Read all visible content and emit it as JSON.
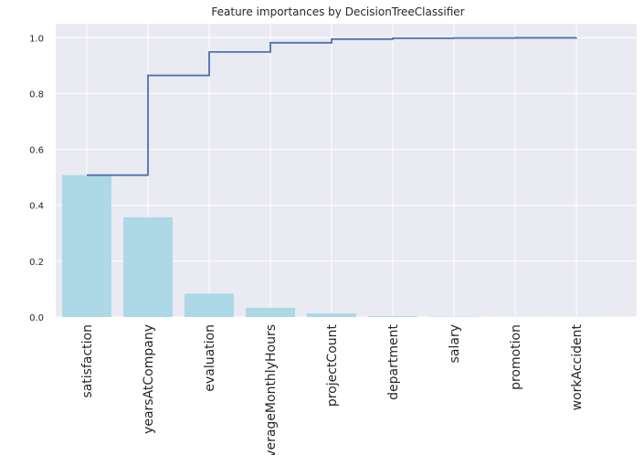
{
  "chart_data": {
    "type": "bar",
    "title": "Feature importances by DecisionTreeClassifier",
    "xlabel": "",
    "ylabel": "",
    "categories": [
      "satisfaction",
      "yearsAtCompany",
      "evaluation",
      "averageMonthlyHours",
      "projectCount",
      "department",
      "salary",
      "promotion",
      "workAccident"
    ],
    "series": [
      {
        "type": "bar",
        "values": [
          0.508,
          0.357,
          0.084,
          0.033,
          0.013,
          0.003,
          0.001,
          0.0005,
          0.0005
        ]
      },
      {
        "type": "step-cumulative",
        "values": [
          0.508,
          0.865,
          0.949,
          0.982,
          0.995,
          0.998,
          0.999,
          0.9995,
          1.0
        ]
      }
    ],
    "yticks": [
      "0.0",
      "0.2",
      "0.4",
      "0.6",
      "0.8",
      "1.0"
    ],
    "ylim": [
      0,
      1.05
    ],
    "grid": true,
    "colors": {
      "bars": "#add8e6",
      "line": "#4c72b0",
      "plot_background": "#eaeaf2",
      "grid": "#ffffff"
    }
  }
}
